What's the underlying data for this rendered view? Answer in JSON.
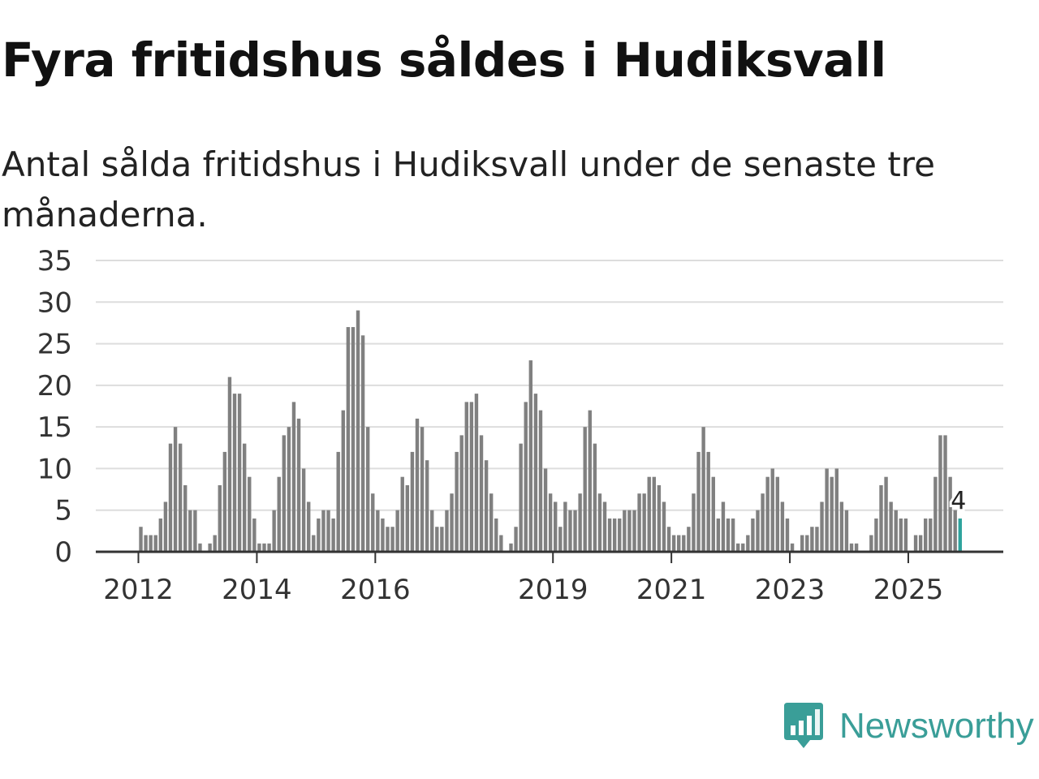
{
  "title": "Fyra fritidshus såldes i Hudiksvall",
  "subtitle": "Antal sålda fritidshus i Hudiksvall under de senaste tre månaderna.",
  "brand": {
    "name": "Newsworthy",
    "icon": "newsworthy-logo-icon"
  },
  "colors": {
    "bar": "#808080",
    "highlight": "#2ea39d",
    "grid": "#dddddd",
    "axis": "#333333",
    "brand": "#3a9e98"
  },
  "chart_data": {
    "type": "bar",
    "title": "",
    "xlabel": "",
    "ylabel": "",
    "ylim": [
      0,
      35
    ],
    "yticks": [
      0,
      5,
      10,
      15,
      20,
      25,
      30,
      35
    ],
    "grid": true,
    "x_start": "2011-01",
    "x_ticks": [
      {
        "label": "2012",
        "index": 12
      },
      {
        "label": "2014",
        "index": 36
      },
      {
        "label": "2016",
        "index": 60
      },
      {
        "label": "2019",
        "index": 96
      },
      {
        "label": "2021",
        "index": 120
      },
      {
        "label": "2023",
        "index": 144
      },
      {
        "label": "2025",
        "index": 168
      }
    ],
    "highlight_label": "4",
    "values": [
      0,
      0,
      0,
      0,
      0,
      0,
      0,
      0,
      0,
      0,
      0,
      0,
      3,
      2,
      2,
      2,
      4,
      6,
      13,
      15,
      13,
      8,
      5,
      5,
      1,
      0,
      1,
      2,
      8,
      12,
      21,
      19,
      19,
      13,
      9,
      4,
      1,
      1,
      1,
      5,
      9,
      14,
      15,
      18,
      16,
      10,
      6,
      2,
      4,
      5,
      5,
      4,
      12,
      17,
      27,
      27,
      29,
      26,
      15,
      7,
      5,
      4,
      3,
      3,
      5,
      9,
      8,
      12,
      16,
      15,
      11,
      5,
      3,
      3,
      5,
      7,
      12,
      14,
      18,
      18,
      19,
      14,
      11,
      7,
      4,
      2,
      0,
      1,
      3,
      13,
      18,
      23,
      19,
      17,
      10,
      7,
      6,
      3,
      6,
      5,
      5,
      7,
      15,
      17,
      13,
      7,
      6,
      4,
      4,
      4,
      5,
      5,
      5,
      7,
      7,
      9,
      9,
      8,
      6,
      3,
      2,
      2,
      2,
      3,
      7,
      12,
      15,
      12,
      9,
      4,
      6,
      4,
      4,
      1,
      1,
      2,
      4,
      5,
      7,
      9,
      10,
      9,
      6,
      4,
      1,
      0,
      2,
      2,
      3,
      3,
      6,
      10,
      9,
      10,
      6,
      5,
      1,
      1,
      0,
      0,
      2,
      4,
      8,
      9,
      6,
      5,
      4,
      4,
      0,
      2,
      2,
      4,
      4,
      9,
      14,
      14,
      9,
      5,
      4
    ]
  }
}
